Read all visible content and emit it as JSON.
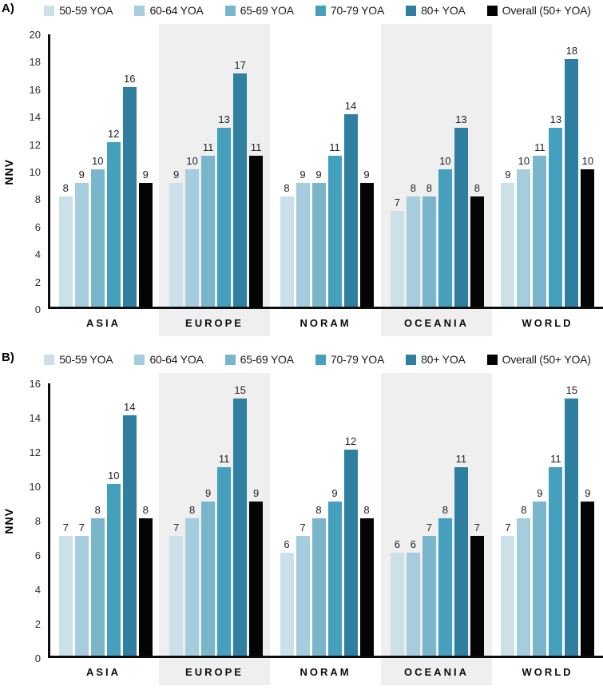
{
  "chart_data": [
    {
      "type": "bar",
      "panel_label": "A)",
      "ylabel": "NNV",
      "xlabel": "",
      "ylim": [
        0,
        20
      ],
      "ytick_step": 2,
      "grid": false,
      "legend_position": "top",
      "axis_color": "#0d0d0d",
      "shaded_band_color": "#efefef",
      "categories": [
        "ASIA",
        "EUROPE",
        "NORAM",
        "OCEANIA",
        "WORLD"
      ],
      "shaded_categories": [
        "EUROPE",
        "OCEANIA"
      ],
      "series": [
        {
          "name": "50-59 YOA",
          "color": "#cce0ea",
          "values": [
            8,
            9,
            8,
            7,
            9
          ]
        },
        {
          "name": "60-64 YOA",
          "color": "#a5cddd",
          "values": [
            9,
            10,
            9,
            8,
            10
          ]
        },
        {
          "name": "65-69 YOA",
          "color": "#79b5cb",
          "values": [
            10,
            11,
            9,
            8,
            11
          ]
        },
        {
          "name": "70-79 YOA",
          "color": "#45a0bd",
          "values": [
            12,
            13,
            11,
            10,
            13
          ]
        },
        {
          "name": "80+ YOA",
          "color": "#2f80a0",
          "values": [
            16,
            17,
            14,
            13,
            18
          ]
        },
        {
          "name": "Overall (50+ YOA)",
          "color": "#040404",
          "values": [
            9,
            11,
            9,
            8,
            10
          ]
        }
      ]
    },
    {
      "type": "bar",
      "panel_label": "B)",
      "ylabel": "NNV",
      "xlabel": "",
      "ylim": [
        0,
        16
      ],
      "ytick_step": 2,
      "grid": false,
      "legend_position": "top",
      "axis_color": "#0d0d0d",
      "shaded_band_color": "#efefef",
      "categories": [
        "ASIA",
        "EUROPE",
        "NORAM",
        "OCEANIA",
        "WORLD"
      ],
      "shaded_categories": [
        "EUROPE",
        "OCEANIA"
      ],
      "series": [
        {
          "name": "50-59 YOA",
          "color": "#cce0ea",
          "values": [
            7,
            7,
            6,
            6,
            7
          ]
        },
        {
          "name": "60-64 YOA",
          "color": "#a5cddd",
          "values": [
            7,
            8,
            7,
            6,
            8
          ]
        },
        {
          "name": "65-69 YOA",
          "color": "#79b5cb",
          "values": [
            8,
            9,
            8,
            7,
            9
          ]
        },
        {
          "name": "70-79 YOA",
          "color": "#45a0bd",
          "values": [
            10,
            11,
            9,
            8,
            11
          ]
        },
        {
          "name": "80+ YOA",
          "color": "#2f80a0",
          "values": [
            14,
            15,
            12,
            11,
            15
          ]
        },
        {
          "name": "Overall (50+ YOA)",
          "color": "#040404",
          "values": [
            8,
            9,
            8,
            7,
            9
          ]
        }
      ]
    }
  ]
}
